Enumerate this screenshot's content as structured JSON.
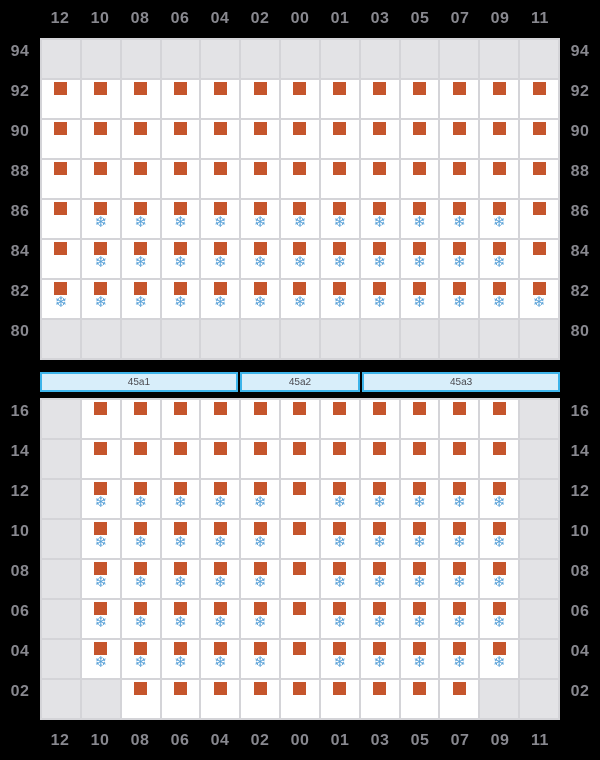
{
  "colors": {
    "background": "#000000",
    "label_text": "#88888f",
    "grid_line": "#d4d4d8",
    "empty_cell": "#e3e3e6",
    "occupied_cell": "#ffffff",
    "container_marker": "#c5552c",
    "reefer_marker": "#5aa2d8",
    "bay_bar_bg": "#d8eefa",
    "bay_bar_border": "#3db4ea",
    "bay_bar_text": "#4a4a50"
  },
  "icons": {
    "container_marker": "square-icon",
    "reefer_marker": "snowflake-icon",
    "snowflake_glyph": "❄"
  },
  "legend": {
    "E": "empty-slot",
    "C": "container",
    "R": "reefer-container"
  },
  "columns": [
    "12",
    "10",
    "08",
    "06",
    "04",
    "02",
    "00",
    "01",
    "03",
    "05",
    "07",
    "09",
    "11"
  ],
  "above_deck_grid": {
    "id": "above-deck",
    "row_labels": [
      "94",
      "92",
      "90",
      "88",
      "86",
      "84",
      "82",
      "80"
    ],
    "rows": [
      "EEEEEEEEEEEEE",
      "CCCCCCCCCCCCC",
      "CCCCCCCCCCCCC",
      "CCCCCCCCCCCCC",
      "CRRRRRRRRRRRC",
      "CRRRRRRRRRRRC",
      "RRRRRRRRRRRRR",
      "EEEEEEEEEEEEE"
    ]
  },
  "bays": [
    {
      "label": "45a1",
      "span": 5
    },
    {
      "label": "45a2",
      "span": 3
    },
    {
      "label": "45a3",
      "span": 5
    }
  ],
  "below_deck_grid": {
    "id": "below-deck",
    "row_labels": [
      "16",
      "14",
      "12",
      "10",
      "08",
      "06",
      "04",
      "02"
    ],
    "rows": [
      "ECCCCCCCCCCCE",
      "ECCCCCCCCCCCE",
      "ERRRRRCRRRRRE",
      "ERRRRRCRRRRRE",
      "ERRRRRCRRRRRE",
      "ERRRRRCRRRRRE",
      "ERRRRRCRRRRRE",
      "EECCCCCCCCCEE"
    ]
  }
}
